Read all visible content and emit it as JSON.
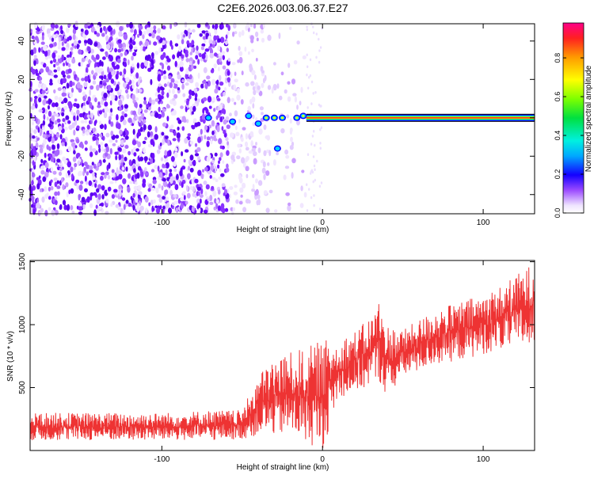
{
  "title": "C2E6.2026.003.06.37.E27",
  "chart_data": [
    {
      "type": "heatmap",
      "xlabel": "Height of straight line (km)",
      "ylabel": "Frequency (Hz)",
      "xlim": [
        -182,
        132
      ],
      "ylim": [
        -50,
        49
      ],
      "xticks": [
        -100,
        0,
        100
      ],
      "yticks": [
        -40,
        -20,
        0,
        20,
        40
      ],
      "colorbar": {
        "label": "Normalized spectral amplitude",
        "range": [
          0.0,
          0.98
        ],
        "ticks": [
          0.0,
          0.2,
          0.4,
          0.6,
          0.8
        ],
        "tick_labels": [
          "0.0",
          "0.2",
          "0.4",
          "0.6",
          "0.8"
        ]
      },
      "noise_region_km": [
        -182,
        -10
      ],
      "tone_line": {
        "frequency_hz": 0,
        "start_km": -10,
        "end_km": 132,
        "amplitude": 0.95
      },
      "bright_trail": [
        {
          "x": -71,
          "y": 0,
          "v": 0.35
        },
        {
          "x": -56,
          "y": -2,
          "v": 0.25
        },
        {
          "x": -46,
          "y": 1,
          "v": 0.35
        },
        {
          "x": -40,
          "y": -3,
          "v": 0.3
        },
        {
          "x": -35,
          "y": 0,
          "v": 0.5
        },
        {
          "x": -30,
          "y": 0,
          "v": 0.45
        },
        {
          "x": -25,
          "y": 0,
          "v": 0.55
        },
        {
          "x": -16,
          "y": 0,
          "v": 0.7
        },
        {
          "x": -12,
          "y": 1,
          "v": 0.6
        },
        {
          "x": -28,
          "y": -16,
          "v": 0.3
        }
      ]
    },
    {
      "type": "line",
      "xlabel": "Height of straight line (km)",
      "ylabel": "SNR (10 * v/v)",
      "xlim": [
        -182,
        132
      ],
      "ylim": [
        0,
        1510
      ],
      "xticks": [
        -100,
        0,
        100
      ],
      "yticks": [
        500,
        1000,
        1500
      ],
      "series": [
        {
          "name": "SNR",
          "color": "#ee3333",
          "envelope": {
            "x": [
              -182,
              -150,
              -100,
              -70,
              -50,
              -40,
              -30,
              -20,
              -10,
              0,
              10,
              20,
              30,
              35,
              40,
              50,
              70,
              90,
              110,
              132
            ],
            "low": [
              80,
              80,
              80,
              80,
              90,
              120,
              120,
              120,
              60,
              0,
              420,
              450,
              520,
              560,
              420,
              580,
              680,
              730,
              800,
              820
            ],
            "high": [
              300,
              300,
              300,
              320,
              320,
              600,
              740,
              780,
              820,
              880,
              880,
              950,
              1060,
              1200,
              1000,
              960,
              1120,
              1200,
              1300,
              1500
            ]
          }
        }
      ]
    }
  ]
}
